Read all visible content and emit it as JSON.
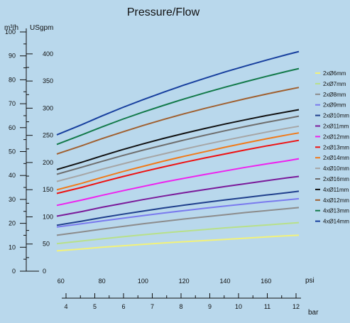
{
  "chart_data": {
    "type": "line",
    "title": "Pressure/Flow",
    "axes": {
      "flow_m3h": {
        "label": "m³/h",
        "ticks": [
          "0",
          "10",
          "20",
          "30",
          "40",
          "50",
          "60",
          "70",
          "80",
          "90",
          "100"
        ],
        "range": [
          0,
          100
        ]
      },
      "flow_usgpm": {
        "label": "USgpm",
        "ticks": [
          "0",
          "50",
          "100",
          "150",
          "200",
          "250",
          "300",
          "350",
          "400"
        ]
      },
      "pressure_psi": {
        "label": "psi",
        "ticks": [
          "60",
          "80",
          "100",
          "120",
          "140",
          "160"
        ],
        "range": [
          58,
          176
        ]
      },
      "pressure_bar": {
        "label": "bar",
        "ticks": [
          "4",
          "5",
          "6",
          "7",
          "8",
          "9",
          "10",
          "11",
          "12"
        ]
      }
    },
    "grid": false,
    "legend_position": "right",
    "x": [
      58,
      70,
      80,
      90,
      100,
      110,
      120,
      130,
      140,
      150,
      160,
      170,
      176
    ],
    "series": [
      {
        "name": "2xØ6mm",
        "color": "#f2f27a",
        "values": [
          8.5,
          9.3,
          10.0,
          10.6,
          11.2,
          11.8,
          12.3,
          12.8,
          13.3,
          13.8,
          14.3,
          14.8,
          15.0
        ]
      },
      {
        "name": "2xØ7mm",
        "color": "#b8e08a",
        "values": [
          11.5,
          12.6,
          13.5,
          14.4,
          15.2,
          16.0,
          16.7,
          17.4,
          18.1,
          18.7,
          19.3,
          19.9,
          20.3
        ]
      },
      {
        "name": "2xØ8mm",
        "color": "#8c8c8c",
        "values": [
          15.0,
          16.4,
          17.6,
          18.7,
          19.8,
          20.8,
          21.8,
          22.7,
          23.6,
          24.5,
          25.3,
          26.1,
          26.6
        ]
      },
      {
        "name": "2xØ9mm",
        "color": "#7a7aee",
        "values": [
          18.5,
          19.8,
          21.0,
          22.1,
          23.2,
          24.3,
          25.3,
          26.3,
          27.2,
          28.1,
          29.0,
          29.8,
          30.3
        ]
      },
      {
        "name": "2xØ10mm",
        "color": "#1f3f8c",
        "values": [
          19.2,
          20.9,
          22.4,
          23.8,
          25.1,
          26.4,
          27.6,
          28.7,
          29.8,
          30.8,
          31.8,
          32.8,
          33.4
        ]
      },
      {
        "name": "2xØ11mm",
        "color": "#7a1a9a",
        "values": [
          23.0,
          24.9,
          26.7,
          28.3,
          29.9,
          31.4,
          32.8,
          34.1,
          35.4,
          36.6,
          37.8,
          39.0,
          39.6
        ]
      },
      {
        "name": "2xØ12mm",
        "color": "#ee22ee",
        "values": [
          27.5,
          29.7,
          31.7,
          33.6,
          35.4,
          37.2,
          38.8,
          40.4,
          41.9,
          43.4,
          44.8,
          46.1,
          47.0
        ]
      },
      {
        "name": "2xØ13mm",
        "color": "#ee1111",
        "values": [
          32.5,
          35.0,
          37.3,
          39.5,
          41.6,
          43.6,
          45.5,
          47.3,
          49.0,
          50.7,
          52.3,
          53.8,
          54.7
        ]
      },
      {
        "name": "2xØ14mm",
        "color": "#f07a1a",
        "values": [
          34.0,
          36.7,
          39.2,
          41.6,
          43.8,
          46.0,
          48.0,
          49.9,
          51.8,
          53.6,
          55.3,
          56.9,
          57.8
        ]
      },
      {
        "name": "4xØ10mm",
        "color": "#a6a6a6",
        "values": [
          37.5,
          40.2,
          42.6,
          44.8,
          47.0,
          49.0,
          51.0,
          52.9,
          54.7,
          56.4,
          58.1,
          59.7,
          60.6
        ]
      },
      {
        "name": "2xØ16mm",
        "color": "#6e6e6e",
        "values": [
          40.5,
          43.4,
          45.9,
          48.3,
          50.6,
          52.7,
          54.8,
          56.8,
          58.7,
          60.5,
          62.2,
          63.8,
          64.8
        ]
      },
      {
        "name": "4xØ11mm",
        "color": "#111111",
        "values": [
          42.5,
          45.5,
          48.2,
          50.8,
          53.2,
          55.5,
          57.6,
          59.6,
          61.5,
          63.3,
          65.0,
          66.6,
          67.5
        ]
      },
      {
        "name": "4xØ12mm",
        "color": "#a06030",
        "values": [
          49.0,
          52.4,
          55.4,
          58.2,
          60.9,
          63.4,
          65.8,
          68.0,
          70.1,
          72.1,
          74.0,
          75.8,
          76.8
        ]
      },
      {
        "name": "4xØ13mm",
        "color": "#137a4a",
        "values": [
          53.0,
          56.9,
          60.3,
          63.5,
          66.5,
          69.3,
          72.0,
          74.5,
          76.9,
          79.2,
          81.4,
          83.5,
          84.7
        ]
      },
      {
        "name": "4xØ14mm",
        "color": "#173f9e",
        "values": [
          57.0,
          61.2,
          64.9,
          68.4,
          71.7,
          74.8,
          77.8,
          80.6,
          83.3,
          85.8,
          88.2,
          90.5,
          91.8
        ]
      }
    ]
  }
}
